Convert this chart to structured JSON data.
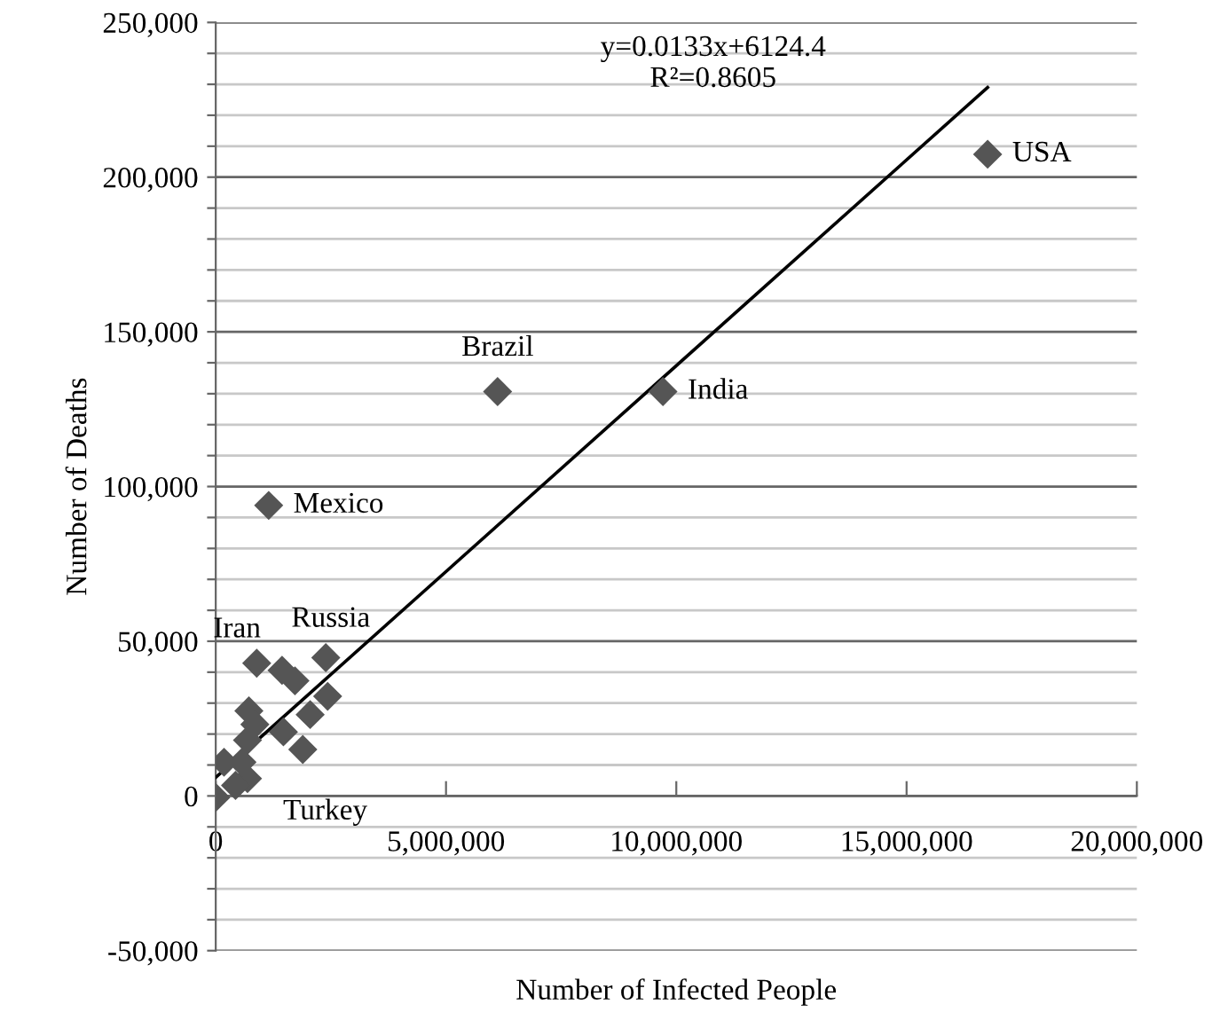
{
  "chart_data": {
    "type": "scatter",
    "xlabel": "Number of Infected People",
    "ylabel": "Number of Deaths",
    "xlim": [
      0,
      20000000
    ],
    "ylim": [
      -50000,
      250000
    ],
    "xticks": [
      {
        "value": 0,
        "label": "0"
      },
      {
        "value": 5000000,
        "label": "5,000,000"
      },
      {
        "value": 10000000,
        "label": "10,000,000"
      },
      {
        "value": 15000000,
        "label": "15,000,000"
      },
      {
        "value": 20000000,
        "label": "20,000,000"
      }
    ],
    "yticks": [
      {
        "value": -50000,
        "label": "-50,000"
      },
      {
        "value": -40000,
        "label": null
      },
      {
        "value": -30000,
        "label": null
      },
      {
        "value": -20000,
        "label": null
      },
      {
        "value": -10000,
        "label": null
      },
      {
        "value": 0,
        "label": "0"
      },
      {
        "value": 10000,
        "label": null
      },
      {
        "value": 20000,
        "label": null
      },
      {
        "value": 30000,
        "label": null
      },
      {
        "value": 40000,
        "label": null
      },
      {
        "value": 50000,
        "label": "50,000"
      },
      {
        "value": 60000,
        "label": null
      },
      {
        "value": 70000,
        "label": null
      },
      {
        "value": 80000,
        "label": null
      },
      {
        "value": 90000,
        "label": null
      },
      {
        "value": 100000,
        "label": "100,000"
      },
      {
        "value": 110000,
        "label": null
      },
      {
        "value": 120000,
        "label": null
      },
      {
        "value": 130000,
        "label": null
      },
      {
        "value": 140000,
        "label": null
      },
      {
        "value": 150000,
        "label": "150,000"
      },
      {
        "value": 160000,
        "label": null
      },
      {
        "value": 170000,
        "label": null
      },
      {
        "value": 180000,
        "label": null
      },
      {
        "value": 190000,
        "label": null
      },
      {
        "value": 200000,
        "label": "200,000"
      },
      {
        "value": 210000,
        "label": null
      },
      {
        "value": 220000,
        "label": null
      },
      {
        "value": 230000,
        "label": null
      },
      {
        "value": 240000,
        "label": null
      },
      {
        "value": 250000,
        "label": "250,000"
      }
    ],
    "grid": "y",
    "legend": false,
    "marker": "diamond",
    "series": [
      {
        "color": "#555555",
        "x": [
          16760000,
          6120000,
          9710000,
          1150000,
          890000,
          2390000,
          1440000,
          1720000,
          2430000,
          720000,
          2050000,
          850000,
          690000,
          1470000,
          1890000,
          0,
          690000,
          430000,
          180000,
          570000
        ],
        "values": [
          207400,
          130700,
          130700,
          93900,
          42900,
          44700,
          40600,
          37200,
          32200,
          27500,
          26300,
          23100,
          18000,
          20700,
          15000,
          -500,
          5600,
          3400,
          10900,
          10900
        ]
      },
      {
        "type": "line",
        "color": "#000000",
        "line_style": "solid",
        "marker": "none",
        "x": [
          0,
          16760000
        ],
        "values": [
          6000,
          229000
        ]
      }
    ],
    "annotations": [
      {
        "text": "USA",
        "x": 16760000,
        "y": 207400
      },
      {
        "text": "India",
        "x": 9710000,
        "y": 130700
      },
      {
        "text": "Brazil",
        "x": 6120000,
        "y": 130700
      },
      {
        "text": "Mexico",
        "x": 1150000,
        "y": 93900
      },
      {
        "text": "Iran",
        "x": 890000,
        "y": 42900
      },
      {
        "text": "Russia",
        "x": 2390000,
        "y": 44700
      },
      {
        "text": "Turkey",
        "x": 1890000,
        "y": 15000
      },
      "y=0.0133x+6124.4\nR²=0.8605"
    ]
  }
}
